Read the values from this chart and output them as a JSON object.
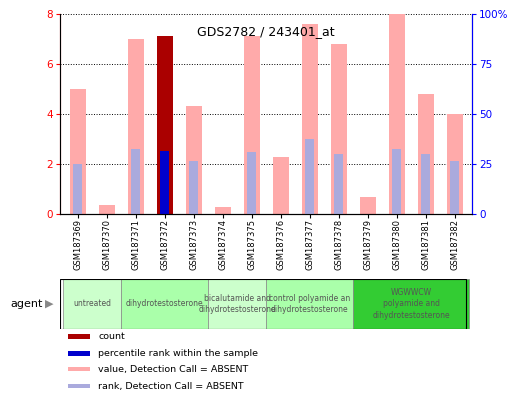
{
  "title": "GDS2782 / 243401_at",
  "samples": [
    "GSM187369",
    "GSM187370",
    "GSM187371",
    "GSM187372",
    "GSM187373",
    "GSM187374",
    "GSM187375",
    "GSM187376",
    "GSM187377",
    "GSM187378",
    "GSM187379",
    "GSM187380",
    "GSM187381",
    "GSM187382"
  ],
  "value_absent": [
    5.0,
    0.35,
    7.0,
    7.1,
    4.3,
    0.25,
    7.1,
    2.25,
    7.6,
    6.8,
    0.65,
    8.0,
    4.8,
    4.0
  ],
  "rank_absent": [
    2.0,
    null,
    2.6,
    2.5,
    2.1,
    null,
    2.45,
    null,
    3.0,
    2.4,
    null,
    2.6,
    2.4,
    2.1
  ],
  "is_count": [
    false,
    false,
    false,
    true,
    false,
    false,
    false,
    false,
    false,
    false,
    false,
    false,
    false,
    false
  ],
  "count_rank": [
    null,
    null,
    null,
    2.5,
    null,
    null,
    null,
    null,
    null,
    null,
    null,
    null,
    null,
    null
  ],
  "agents": [
    {
      "label": "untreated",
      "cols": [
        0,
        1
      ],
      "color": "#ccffcc"
    },
    {
      "label": "dihydrotestosterone",
      "cols": [
        2,
        3,
        4
      ],
      "color": "#aaffaa"
    },
    {
      "label": "bicalutamide and\ndihydrotestosterone",
      "cols": [
        5,
        6
      ],
      "color": "#ccffcc"
    },
    {
      "label": "control polyamide an\ndihydrotestosterone",
      "cols": [
        7,
        8,
        9
      ],
      "color": "#aaffaa"
    },
    {
      "label": "WGWWCW\npolyamide and\ndihydrotestosterone",
      "cols": [
        10,
        11,
        12,
        13
      ],
      "color": "#33cc33"
    }
  ],
  "ylim_left": [
    0,
    8
  ],
  "ylim_right": [
    0,
    100
  ],
  "yticks_left": [
    0,
    2,
    4,
    6,
    8
  ],
  "yticks_right": [
    0,
    25,
    50,
    75,
    100
  ],
  "color_count": "#aa0000",
  "color_count_rank": "#0000cc",
  "color_value_absent": "#ffaaaa",
  "color_rank_absent": "#aaaadd",
  "bar_width": 0.55,
  "rank_bar_width": 0.3
}
